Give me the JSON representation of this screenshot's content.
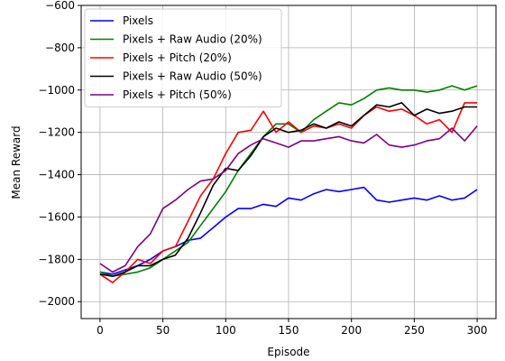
{
  "chart_data": {
    "type": "line",
    "xlabel": "Episode",
    "ylabel": "Mean Reward",
    "xlim": [
      -15,
      315
    ],
    "ylim": [
      -2080,
      -600
    ],
    "xticks": [
      0,
      50,
      100,
      150,
      200,
      250,
      300
    ],
    "yticks": [
      -2000,
      -1800,
      -1600,
      -1400,
      -1200,
      -1000,
      -800,
      -600
    ],
    "grid": true,
    "legend_position": "top-left",
    "series": [
      {
        "name": "Pixels",
        "color": "#0000ff",
        "x": [
          0,
          10,
          20,
          30,
          40,
          50,
          60,
          70,
          80,
          90,
          100,
          110,
          120,
          130,
          140,
          150,
          160,
          170,
          180,
          190,
          200,
          210,
          220,
          230,
          240,
          250,
          260,
          270,
          280,
          290,
          300
        ],
        "values": [
          -1860,
          -1870,
          -1850,
          -1830,
          -1800,
          -1760,
          -1740,
          -1710,
          -1700,
          -1650,
          -1600,
          -1560,
          -1560,
          -1540,
          -1550,
          -1510,
          -1520,
          -1490,
          -1470,
          -1480,
          -1470,
          -1460,
          -1520,
          -1530,
          -1520,
          -1510,
          -1520,
          -1500,
          -1520,
          -1510,
          -1470
        ]
      },
      {
        "name": "Pixels + Raw Audio (20%)",
        "color": "#008000",
        "x": [
          0,
          10,
          20,
          30,
          40,
          50,
          60,
          70,
          80,
          90,
          100,
          110,
          120,
          130,
          140,
          150,
          160,
          170,
          180,
          190,
          200,
          210,
          220,
          230,
          240,
          250,
          260,
          270,
          280,
          290,
          300
        ],
        "values": [
          -1860,
          -1880,
          -1870,
          -1860,
          -1840,
          -1800,
          -1760,
          -1720,
          -1640,
          -1560,
          -1480,
          -1380,
          -1300,
          -1220,
          -1160,
          -1160,
          -1200,
          -1140,
          -1100,
          -1060,
          -1070,
          -1040,
          -1000,
          -990,
          -1000,
          -1000,
          -1010,
          -1000,
          -980,
          -1000,
          -980
        ]
      },
      {
        "name": "Pixels + Pitch (20%)",
        "color": "#ff0000",
        "x": [
          0,
          10,
          20,
          30,
          40,
          50,
          60,
          70,
          80,
          90,
          100,
          110,
          120,
          130,
          140,
          150,
          160,
          170,
          180,
          190,
          200,
          210,
          220,
          230,
          240,
          250,
          260,
          270,
          280,
          290,
          300
        ],
        "values": [
          -1870,
          -1910,
          -1860,
          -1800,
          -1820,
          -1760,
          -1740,
          -1620,
          -1500,
          -1420,
          -1300,
          -1200,
          -1190,
          -1100,
          -1200,
          -1150,
          -1200,
          -1170,
          -1180,
          -1160,
          -1180,
          -1120,
          -1080,
          -1100,
          -1090,
          -1120,
          -1160,
          -1140,
          -1200,
          -1060,
          -1060
        ]
      },
      {
        "name": "Pixels + Raw Audio (50%)",
        "color": "#000000",
        "x": [
          0,
          10,
          20,
          30,
          40,
          50,
          60,
          70,
          80,
          90,
          100,
          110,
          120,
          130,
          140,
          150,
          160,
          170,
          180,
          190,
          200,
          210,
          220,
          230,
          240,
          250,
          260,
          270,
          280,
          290,
          300
        ],
        "values": [
          -1870,
          -1880,
          -1860,
          -1830,
          -1830,
          -1800,
          -1780,
          -1700,
          -1580,
          -1450,
          -1370,
          -1380,
          -1310,
          -1220,
          -1180,
          -1200,
          -1190,
          -1160,
          -1180,
          -1150,
          -1170,
          -1120,
          -1070,
          -1080,
          -1060,
          -1120,
          -1090,
          -1110,
          -1100,
          -1080,
          -1080
        ]
      },
      {
        "name": "Pixels + Pitch (50%)",
        "color": "#800080",
        "x": [
          0,
          10,
          20,
          30,
          40,
          50,
          60,
          70,
          80,
          90,
          100,
          110,
          120,
          130,
          140,
          150,
          160,
          170,
          180,
          190,
          200,
          210,
          220,
          230,
          240,
          250,
          260,
          270,
          280,
          290,
          300
        ],
        "values": [
          -1820,
          -1860,
          -1830,
          -1740,
          -1680,
          -1560,
          -1520,
          -1470,
          -1430,
          -1420,
          -1380,
          -1300,
          -1260,
          -1230,
          -1250,
          -1270,
          -1240,
          -1240,
          -1230,
          -1220,
          -1240,
          -1250,
          -1210,
          -1260,
          -1270,
          -1260,
          -1240,
          -1230,
          -1180,
          -1240,
          -1170
        ]
      }
    ]
  }
}
